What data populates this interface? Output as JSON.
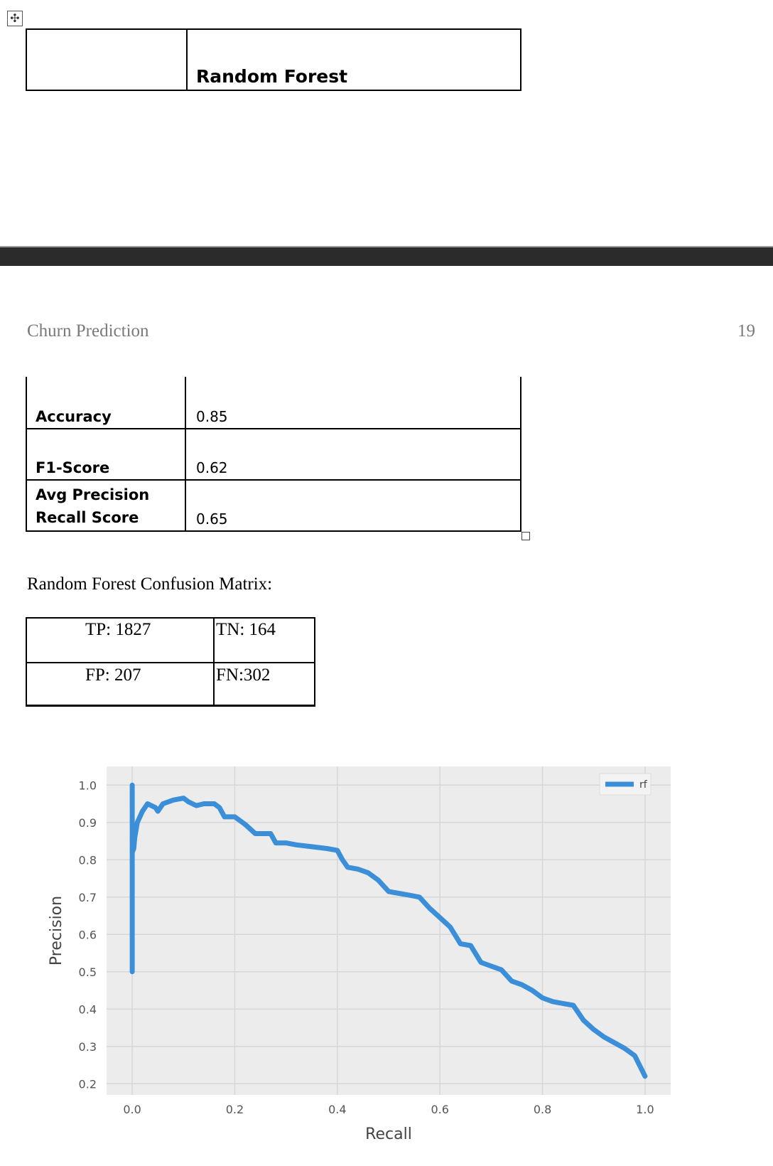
{
  "model_table": {
    "header": "Random Forest"
  },
  "page_header": {
    "title": "Churn Prediction",
    "page_number": "19"
  },
  "metrics": [
    {
      "label": "Accuracy",
      "value": "0.85"
    },
    {
      "label": "F1-Score",
      "value": "0.62"
    },
    {
      "label_line1": "Avg Precision",
      "label_line2": "Recall Score",
      "value": "0.65"
    }
  ],
  "confusion_matrix": {
    "title": "Random Forest Confusion Matrix:",
    "cells": {
      "tp": "TP: 1827",
      "tn": "TN: 164",
      "fp": "FP: 207",
      "fn": "FN:302"
    }
  },
  "chart_data": {
    "type": "line",
    "title": "",
    "xlabel": "Recall",
    "ylabel": "Precision",
    "xlim": [
      -0.05,
      1.05
    ],
    "ylim": [
      0.17,
      1.05
    ],
    "xticks": [
      "0.0",
      "0.2",
      "0.4",
      "0.6",
      "0.8",
      "1.0"
    ],
    "yticks": [
      "0.2",
      "0.3",
      "0.4",
      "0.5",
      "0.6",
      "0.7",
      "0.8",
      "0.9",
      "1.0"
    ],
    "grid": true,
    "legend": "top-right",
    "colors": {
      "line": "#3a8fd8",
      "background": "#ececec",
      "grid": "#d6d6d6"
    },
    "series": [
      {
        "name": "rf",
        "x": [
          0.0,
          0.0,
          0.0,
          0.003,
          0.005,
          0.01,
          0.02,
          0.03,
          0.045,
          0.05,
          0.06,
          0.08,
          0.1,
          0.11,
          0.125,
          0.14,
          0.16,
          0.17,
          0.18,
          0.19,
          0.2,
          0.22,
          0.24,
          0.25,
          0.27,
          0.28,
          0.3,
          0.32,
          0.35,
          0.38,
          0.4,
          0.41,
          0.42,
          0.44,
          0.46,
          0.48,
          0.5,
          0.52,
          0.54,
          0.56,
          0.58,
          0.6,
          0.62,
          0.64,
          0.66,
          0.68,
          0.7,
          0.72,
          0.74,
          0.76,
          0.78,
          0.8,
          0.82,
          0.84,
          0.86,
          0.88,
          0.9,
          0.92,
          0.94,
          0.96,
          0.98,
          1.0
        ],
        "y": [
          1.0,
          0.5,
          0.82,
          0.83,
          0.86,
          0.9,
          0.93,
          0.95,
          0.94,
          0.93,
          0.95,
          0.96,
          0.965,
          0.955,
          0.945,
          0.95,
          0.95,
          0.94,
          0.915,
          0.915,
          0.915,
          0.895,
          0.87,
          0.87,
          0.87,
          0.845,
          0.845,
          0.84,
          0.835,
          0.83,
          0.825,
          0.8,
          0.78,
          0.775,
          0.765,
          0.745,
          0.715,
          0.71,
          0.705,
          0.7,
          0.67,
          0.645,
          0.62,
          0.575,
          0.57,
          0.525,
          0.515,
          0.505,
          0.475,
          0.465,
          0.45,
          0.43,
          0.42,
          0.415,
          0.41,
          0.37,
          0.345,
          0.325,
          0.31,
          0.295,
          0.275,
          0.22
        ]
      }
    ]
  }
}
